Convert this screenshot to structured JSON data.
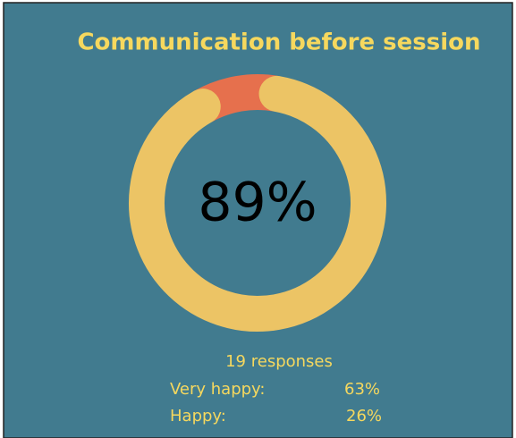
{
  "chart_data": {
    "type": "donut",
    "title": "Communication before session",
    "categories": [
      null,
      null
    ],
    "values": [
      89,
      11
    ],
    "value_labels": [
      "89%",
      null
    ],
    "colors": [
      "#ecc465",
      "#e6704d"
    ],
    "annotation": "19 responses",
    "breakdown": [
      {
        "label": "Very happy:",
        "value_label": "63%"
      },
      {
        "label": "Happy:",
        "value_label": "26%"
      }
    ]
  }
}
